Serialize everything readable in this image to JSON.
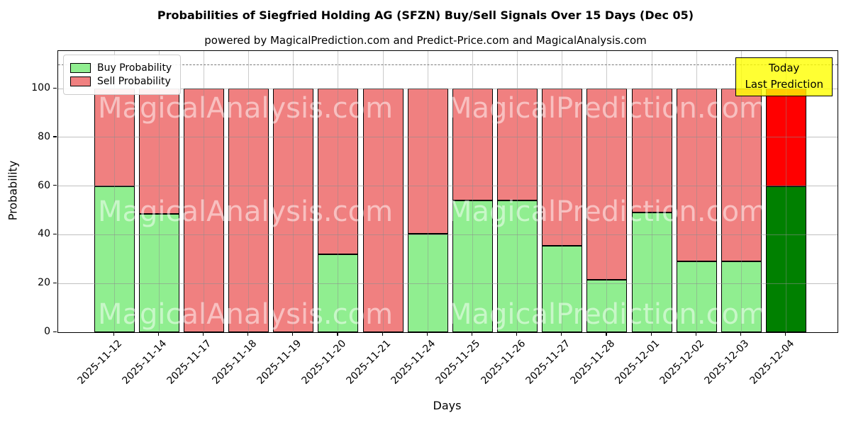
{
  "title": "Probabilities of Siegfried Holding AG (SFZN) Buy/Sell Signals Over 15 Days (Dec 05)",
  "subtitle": "powered by MagicalPrediction.com and Predict-Price.com and MagicalAnalysis.com",
  "legend": {
    "buy_label": "Buy Probability",
    "sell_label": "Sell Probability"
  },
  "annotation": {
    "line1": "Today",
    "line2": "Last Prediction"
  },
  "axes": {
    "x_label": "Days",
    "y_label": "Probability",
    "y_ticks": [
      0,
      20,
      40,
      60,
      80,
      100
    ]
  },
  "watermarks": {
    "left_text": "MagicalAnalysis.com",
    "right_text": "MagicalPrediction.com"
  },
  "colors": {
    "buy": "#90ee90",
    "sell": "#f08080",
    "today_buy": "#008000",
    "today_sell": "#ff0000",
    "annotation_bg": "#ffff00",
    "grid": "#8c8c8c"
  },
  "chart_data": {
    "type": "bar",
    "stacked": true,
    "title": "Probabilities of Siegfried Holding AG (SFZN) Buy/Sell Signals Over 15 Days (Dec 05)",
    "xlabel": "Days",
    "ylabel": "Probability",
    "ylim": [
      0,
      115.7
    ],
    "grid": true,
    "legend_position": "upper left",
    "dashed_line_y": 110,
    "categories": [
      "2025-11-12",
      "2025-11-14",
      "2025-11-17",
      "2025-11-18",
      "2025-11-19",
      "2025-11-20",
      "2025-11-21",
      "2025-11-24",
      "2025-11-25",
      "2025-11-26",
      "2025-11-27",
      "2025-11-28",
      "2025-12-01",
      "2025-12-02",
      "2025-12-03",
      "2025-12-04"
    ],
    "series": [
      {
        "name": "Buy Probability",
        "color": "#90ee90",
        "values": [
          60,
          48.5,
          0,
          0,
          0,
          32,
          0,
          40.5,
          54,
          54,
          35.5,
          21.5,
          49,
          29,
          29,
          60
        ]
      },
      {
        "name": "Sell Probability",
        "color": "#f08080",
        "values": [
          40,
          51.5,
          100,
          100,
          100,
          68,
          100,
          59.5,
          46,
          46,
          64.5,
          78.5,
          51,
          71,
          71,
          40
        ]
      }
    ],
    "today_bar": {
      "category": "2025-12-04",
      "index": 15,
      "buy_color": "#008000",
      "sell_color": "#ff0000"
    }
  }
}
